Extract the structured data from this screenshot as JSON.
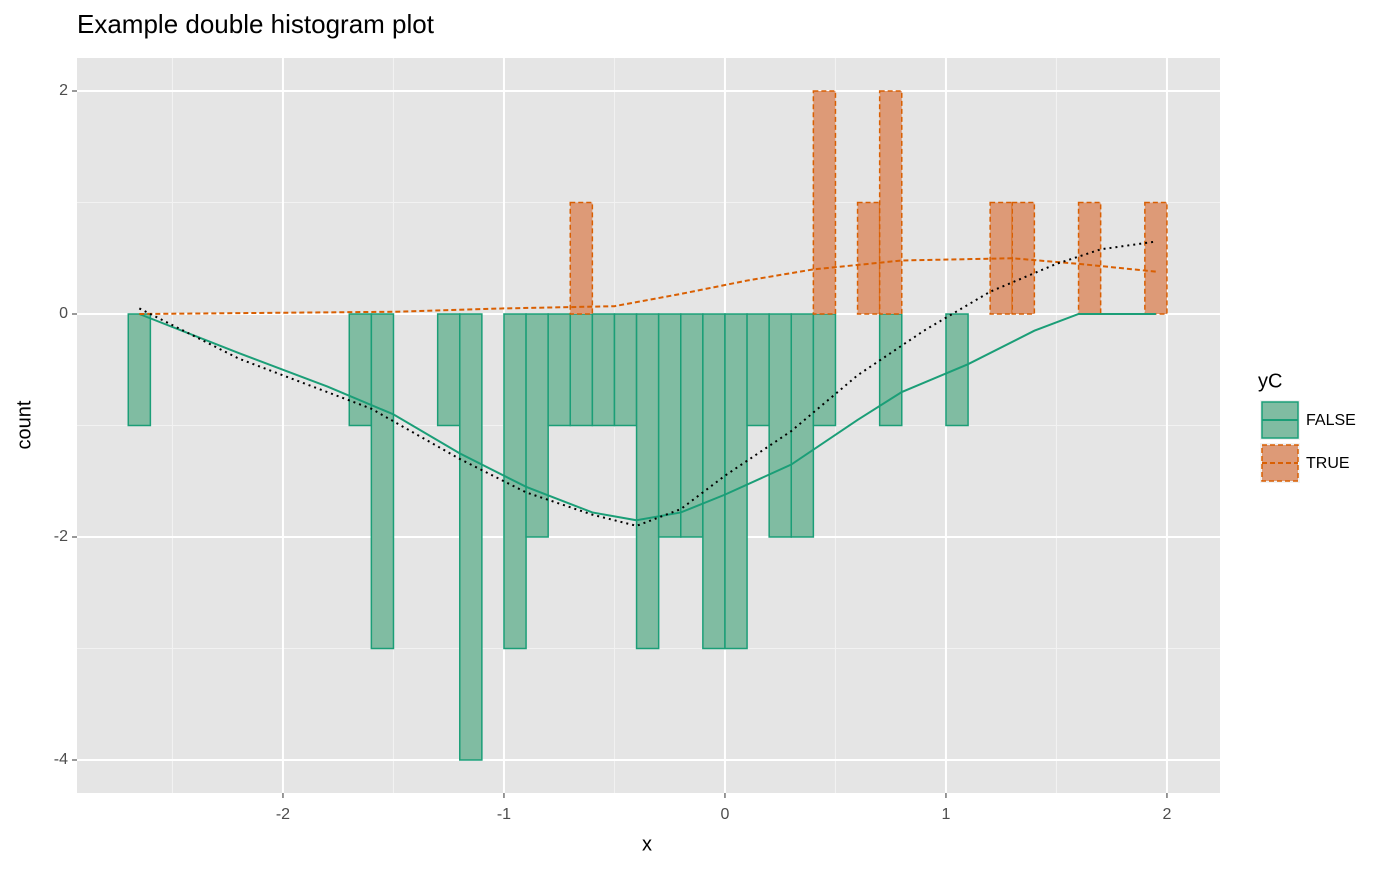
{
  "chart_data": {
    "type": "histogram",
    "title": "Example double histogram plot",
    "x_label": "x",
    "y_label": "count",
    "legend_title": "yC",
    "legend_position": "right",
    "grid": true,
    "xlim": [
      -2.932,
      2.24
    ],
    "ylim": [
      -4.296,
      2.296
    ],
    "xticks": [
      -2,
      -1,
      0,
      1,
      2
    ],
    "yticks": [
      -4,
      -2,
      0,
      2
    ],
    "bins": [
      -2.7,
      -2.6,
      -2.5,
      -2.4,
      -2.3,
      -2.2,
      -2.1,
      -2.0,
      -1.9,
      -1.8,
      -1.7,
      -1.6,
      -1.5,
      -1.4,
      -1.3,
      -1.2,
      -1.1,
      -1.0,
      -0.9,
      -0.8,
      -0.7,
      -0.6,
      -0.5,
      -0.4,
      -0.3,
      -0.2,
      -0.1,
      0.0,
      0.1,
      0.2,
      0.3,
      0.4,
      0.5,
      0.6,
      0.7,
      0.8,
      0.9,
      1.0,
      1.1,
      1.2,
      1.3,
      1.4,
      1.5,
      1.6,
      1.7,
      1.8,
      1.9,
      2.0
    ],
    "series": [
      {
        "name": "FALSE",
        "color": "#1b9e77",
        "fill": "#80bca2",
        "dash": "solid",
        "values": [
          -1,
          0,
          0,
          0,
          0,
          0,
          0,
          0,
          0,
          0,
          -1,
          -3,
          0,
          0,
          -1,
          -4,
          0,
          -3,
          -2,
          -1,
          -1,
          -1,
          -1,
          -3,
          -2,
          -2,
          -3,
          -3,
          -1,
          -2,
          -2,
          -1,
          0,
          0,
          -1,
          0,
          0,
          -1,
          0,
          0,
          0,
          0,
          0,
          0,
          0,
          0,
          0
        ]
      },
      {
        "name": "TRUE",
        "color": "#d95f02",
        "fill": "#dd9a77",
        "dash": "dashed",
        "values": [
          0,
          0,
          0,
          0,
          0,
          0,
          0,
          0,
          0,
          0,
          0,
          0,
          0,
          0,
          0,
          0,
          0,
          0,
          0,
          0,
          1,
          0,
          0,
          0,
          0,
          0,
          0,
          0,
          0,
          0,
          0,
          2,
          0,
          1,
          2,
          0,
          0,
          0,
          0,
          1,
          1,
          0,
          0,
          1,
          0,
          0,
          1
        ]
      }
    ],
    "lines": [
      {
        "color": "#1b9e77",
        "dash": "solid",
        "x": [
          -2.65,
          -2.2,
          -1.8,
          -1.5,
          -1.2,
          -0.9,
          -0.6,
          -0.4,
          -0.2,
          0,
          0.3,
          0.6,
          0.8,
          1.1,
          1.4,
          1.6,
          1.95
        ],
        "values": [
          0,
          -0.35,
          -0.65,
          -0.9,
          -1.25,
          -1.55,
          -1.78,
          -1.85,
          -1.78,
          -1.62,
          -1.35,
          -0.95,
          -0.7,
          -0.45,
          -0.15,
          0,
          0
        ]
      },
      {
        "color": "#d95f02",
        "dash": "dashed",
        "x": [
          -2.65,
          -1.5,
          -1.0,
          -0.5,
          -0.2,
          0.1,
          0.4,
          0.8,
          1.3,
          1.6,
          1.95
        ],
        "values": [
          0,
          0.02,
          0.05,
          0.07,
          0.18,
          0.3,
          0.4,
          0.48,
          0.5,
          0.45,
          0.38
        ]
      },
      {
        "color": "#000000",
        "dash": "dotted",
        "x": [
          -2.65,
          -2.2,
          -1.6,
          -1.2,
          -0.9,
          -0.6,
          -0.4,
          -0.2,
          0,
          0.3,
          0.6,
          0.9,
          1.2,
          1.5,
          1.7,
          1.95
        ],
        "values": [
          0.05,
          -0.4,
          -0.85,
          -1.3,
          -1.6,
          -1.8,
          -1.9,
          -1.75,
          -1.45,
          -1.05,
          -0.55,
          -0.15,
          0.2,
          0.45,
          0.58,
          0.65
        ]
      }
    ]
  }
}
